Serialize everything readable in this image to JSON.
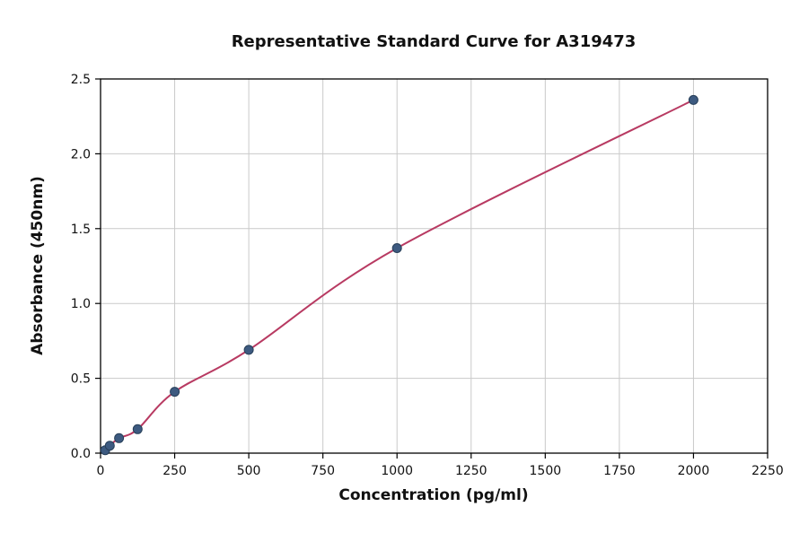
{
  "chart_data": {
    "type": "scatter",
    "title": "Representative Standard Curve for A319473",
    "xlabel": "Concentration (pg/ml)",
    "ylabel": "Absorbance (450nm)",
    "xlim": [
      0,
      2250
    ],
    "ylim": [
      0,
      2.5
    ],
    "xticks": [
      0,
      250,
      500,
      750,
      1000,
      1250,
      1500,
      1750,
      2000,
      2250
    ],
    "xtick_labels": [
      "0",
      "250",
      "500",
      "750",
      "1000",
      "1250",
      "1500",
      "1750",
      "2000",
      "2250"
    ],
    "yticks": [
      0,
      0.5,
      1.0,
      1.5,
      2.0,
      2.5
    ],
    "ytick_labels": [
      "0.0",
      "0.5",
      "1.0",
      "1.5",
      "2.0",
      "2.5"
    ],
    "grid": true,
    "legend": "none",
    "series": [
      {
        "name": "standard-points",
        "points": [
          [
            15.6,
            0.02
          ],
          [
            31.25,
            0.05
          ],
          [
            62.5,
            0.1
          ],
          [
            125,
            0.16
          ],
          [
            250,
            0.41
          ],
          [
            500,
            0.69
          ],
          [
            1000,
            1.37
          ],
          [
            2000,
            2.36
          ]
        ]
      }
    ],
    "colors": {
      "point_fill": "#3d5a80",
      "point_edge": "#273f59",
      "curve": "#b83a62",
      "grid": "#c9c9c9",
      "axis": "#000000",
      "background": "#ffffff"
    }
  }
}
